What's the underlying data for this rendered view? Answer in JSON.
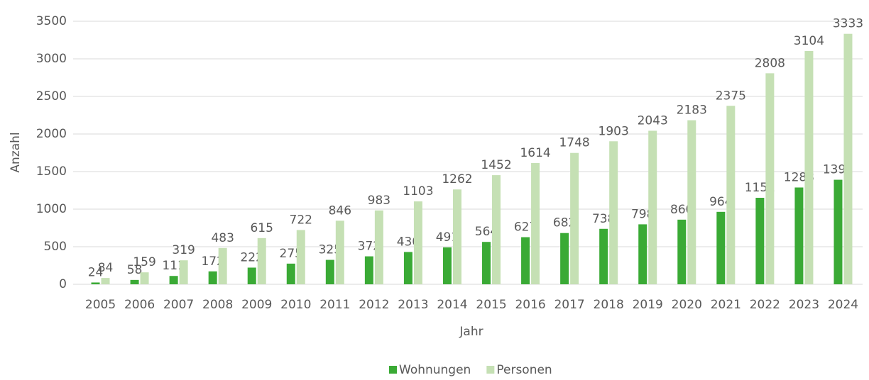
{
  "chart_data": {
    "type": "bar",
    "categories": [
      "2005",
      "2006",
      "2007",
      "2008",
      "2009",
      "2010",
      "2011",
      "2012",
      "2013",
      "2014",
      "2015",
      "2016",
      "2017",
      "2018",
      "2019",
      "2020",
      "2021",
      "2022",
      "2023",
      "2024"
    ],
    "series": [
      {
        "name": "Wohnungen",
        "color": "#3aaa35",
        "values": [
          24,
          58,
          111,
          172,
          222,
          275,
          325,
          372,
          430,
          491,
          564,
          627,
          682,
          738,
          798,
          860,
          964,
          1151,
          1288,
          1391
        ]
      },
      {
        "name": "Personen",
        "color": "#c5e0b4",
        "values": [
          84,
          159,
          319,
          483,
          615,
          722,
          846,
          983,
          1103,
          1262,
          1452,
          1614,
          1748,
          1903,
          2043,
          2183,
          2375,
          2808,
          3104,
          3333
        ]
      }
    ],
    "xlabel": "Jahr",
    "ylabel": "Anzahl",
    "ylim": [
      0,
      3500
    ],
    "yticks": [
      0,
      500,
      1000,
      1500,
      2000,
      2500,
      3000,
      3500
    ],
    "grid": true,
    "legend": "bottom"
  }
}
